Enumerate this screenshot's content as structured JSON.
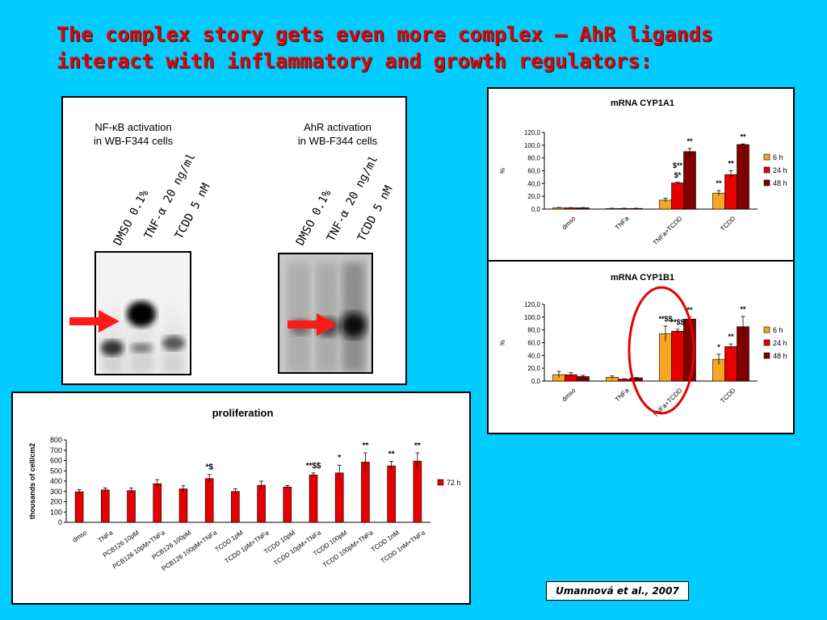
{
  "slide_title": "The complex story gets even more complex – AhR ligands interact with inflammatory and growth regulators:",
  "credit": "Umannová et al., 2007",
  "blots": {
    "left_caption": "NF-κB activation\nin WB-F344 cells",
    "right_caption": "AhR activation\nin WB-F344 cells",
    "lanes": [
      "DMSO 0.1%",
      "TNF-α 20 ng/ml",
      "TCDD 5 nM"
    ],
    "arrow_color": "#ff1a1a"
  },
  "colors": {
    "6 h": "#f5a623",
    "24 h": "#e60000",
    "48 h": "#800000",
    "72 h": "#e60000",
    "highlight_circle": "#e60000"
  },
  "chart_data": [
    {
      "id": "cyp1a1",
      "type": "bar",
      "title": "mRNA CYP1A1",
      "ylabel": "%",
      "ylim": [
        0,
        120
      ],
      "yticks": [
        "0,0",
        "20,0",
        "40,0",
        "60,0",
        "80,0",
        "100,0",
        "120,0"
      ],
      "categories": [
        "dmso",
        "TNFa",
        "TNFa+TCDD",
        "TCDD"
      ],
      "series": [
        {
          "name": "6 h",
          "values": [
            2,
            1,
            14,
            25
          ],
          "errors": [
            0.5,
            0.3,
            3,
            4
          ]
        },
        {
          "name": "24 h",
          "values": [
            2,
            1,
            41,
            54
          ],
          "errors": [
            0.3,
            0.3,
            1,
            6
          ]
        },
        {
          "name": "48 h",
          "values": [
            2,
            1,
            90,
            101
          ],
          "errors": [
            0.3,
            0.3,
            5,
            1
          ]
        }
      ],
      "annotations": [
        {
          "cat": 2,
          "series": 1,
          "text": "$*"
        },
        {
          "cat": 2,
          "series": 1,
          "text": "$**",
          "row": 2
        },
        {
          "cat": 2,
          "series": 2,
          "text": "**"
        },
        {
          "cat": 3,
          "series": 0,
          "text": "**"
        },
        {
          "cat": 3,
          "series": 1,
          "text": "**"
        },
        {
          "cat": 3,
          "series": 2,
          "text": "**"
        }
      ],
      "legend": "right"
    },
    {
      "id": "cyp1b1",
      "type": "bar",
      "title": "mRNA CYP1B1",
      "ylabel": "%",
      "ylim": [
        0,
        120
      ],
      "yticks": [
        "0,0",
        "20,0",
        "40,0",
        "60,0",
        "80,0",
        "100,0",
        "120,0"
      ],
      "categories": [
        "dmso",
        "TNFa",
        "TNFa+TCDD",
        "TCDD"
      ],
      "series": [
        {
          "name": "6 h",
          "values": [
            10,
            6,
            74,
            34
          ],
          "errors": [
            5,
            2,
            12,
            8
          ]
        },
        {
          "name": "24 h",
          "values": [
            10,
            3,
            78,
            54
          ],
          "errors": [
            3,
            0.5,
            3,
            4
          ]
        },
        {
          "name": "48 h",
          "values": [
            7,
            5,
            97,
            85
          ],
          "errors": [
            2,
            0.5,
            3,
            16
          ]
        }
      ],
      "annotations": [
        {
          "cat": 2,
          "series": 0,
          "text": "**$$"
        },
        {
          "cat": 2,
          "series": 1,
          "text": "**$$"
        },
        {
          "cat": 2,
          "series": 2,
          "text": "**"
        },
        {
          "cat": 3,
          "series": 0,
          "text": "*"
        },
        {
          "cat": 3,
          "series": 1,
          "text": "**"
        },
        {
          "cat": 3,
          "series": 2,
          "text": "**"
        }
      ],
      "legend": "right"
    },
    {
      "id": "proliferation",
      "type": "bar",
      "title": "proliferation",
      "ylabel": "thousands of cell/cm2",
      "ylim": [
        0,
        800
      ],
      "yticks": [
        "0",
        "100",
        "200",
        "300",
        "400",
        "500",
        "600",
        "700",
        "800"
      ],
      "categories": [
        "dmso",
        "TNFa",
        "PCB126 10pM",
        "PCB126 10pM+TNFa",
        "PCB126 100pM",
        "PCB126 100pM+TNFa",
        "TCDD 1pM",
        "TCDD 1pM+TNFa",
        "TCDD 10pM",
        "TCDD 10pM+TNFa",
        "TCDD 100pM",
        "TCDD 100pM+TNFa",
        "TCDD 1nM",
        "TCDD 1nM+TNFa"
      ],
      "series": [
        {
          "name": "72 h",
          "values": [
            297,
            315,
            308,
            375,
            325,
            425,
            300,
            360,
            343,
            460,
            480,
            585,
            548,
            595
          ],
          "errors": [
            20,
            18,
            25,
            40,
            30,
            40,
            25,
            40,
            15,
            20,
            75,
            90,
            45,
            80
          ]
        }
      ],
      "annotations": [
        {
          "cat": 5,
          "text": "*$"
        },
        {
          "cat": 9,
          "text": "**$$"
        },
        {
          "cat": 10,
          "text": "*"
        },
        {
          "cat": 11,
          "text": "**"
        },
        {
          "cat": 12,
          "text": "**"
        },
        {
          "cat": 13,
          "text": "**"
        }
      ],
      "legend": "right"
    }
  ]
}
